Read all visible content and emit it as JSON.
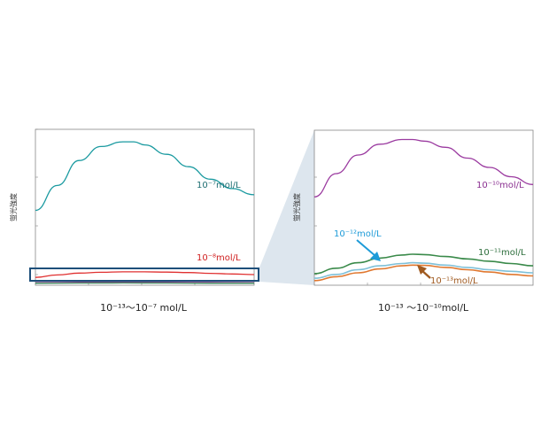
{
  "chart_data": [
    {
      "type": "line",
      "caption": "10⁻¹³～10⁻⁷ mol/L",
      "ylabel": "蛍光強度",
      "xlim": [
        0,
        100
      ],
      "ylim": [
        0,
        100
      ],
      "grid": false,
      "series": [
        {
          "name": "10⁻⁷mol/L",
          "color": "#1a9aa0",
          "x": [
            0,
            10,
            20,
            30,
            40,
            45,
            50,
            60,
            70,
            80,
            90,
            100
          ],
          "y": [
            48,
            64,
            80,
            89,
            92,
            92,
            90,
            84,
            76,
            68,
            62,
            58
          ]
        },
        {
          "name": "10⁻⁸mol/L",
          "color": "#e03030",
          "x": [
            0,
            10,
            20,
            30,
            40,
            50,
            60,
            70,
            80,
            90,
            100
          ],
          "y": [
            5.0,
            6.6,
            7.8,
            8.3,
            8.6,
            8.6,
            8.4,
            8.1,
            7.6,
            7.2,
            6.8
          ]
        },
        {
          "name": "",
          "color": "#a04aa0",
          "x": [
            0,
            20,
            40,
            60,
            80,
            100
          ],
          "y": [
            1.7,
            1.9,
            2.0,
            1.9,
            1.8,
            1.7
          ]
        },
        {
          "name": "",
          "color": "#2f7f50",
          "x": [
            0,
            20,
            40,
            60,
            80,
            100
          ],
          "y": [
            1.3,
            1.4,
            1.5,
            1.4,
            1.3,
            1.3
          ]
        }
      ]
    },
    {
      "type": "line",
      "caption": "10⁻¹³ ～10⁻¹⁰mol/L",
      "ylabel": "蛍光強度",
      "xlim": [
        0,
        100
      ],
      "ylim": [
        0,
        100
      ],
      "grid": false,
      "series": [
        {
          "name": "10⁻¹⁰mol/L",
          "color": "#9b3ba0",
          "x": [
            0,
            10,
            20,
            30,
            40,
            45,
            50,
            60,
            70,
            80,
            90,
            100
          ],
          "y": [
            57,
            72,
            84,
            91,
            94,
            94,
            93,
            89,
            82,
            76,
            70,
            65
          ]
        },
        {
          "name": "10⁻¹¹mol/L",
          "color": "#3a8a4a",
          "x": [
            0,
            10,
            20,
            30,
            40,
            45,
            50,
            60,
            70,
            80,
            90,
            100
          ],
          "y": [
            7.5,
            11,
            14.5,
            17.5,
            19.5,
            20,
            19.8,
            18.5,
            17,
            15.5,
            14,
            12.5
          ]
        },
        {
          "name": "10⁻¹²mol/L",
          "color": "#7fc0d8",
          "x": [
            0,
            10,
            20,
            30,
            40,
            45,
            50,
            60,
            70,
            80,
            90,
            100
          ],
          "y": [
            4.5,
            7,
            10,
            12.5,
            14,
            14.5,
            14.2,
            13,
            11.5,
            10,
            9,
            8
          ]
        },
        {
          "name": "10⁻¹³mol/L",
          "color": "#e07830",
          "x": [
            0,
            10,
            20,
            30,
            40,
            45,
            50,
            60,
            70,
            80,
            90,
            100
          ],
          "y": [
            3,
            5.5,
            8,
            10.5,
            12.5,
            13,
            12.8,
            11.5,
            10,
            8.5,
            7,
            6
          ]
        }
      ]
    }
  ],
  "colors": {
    "callout_blue": "#1e9bd8",
    "callout_brown": "#a05a20",
    "zoom_box": "#1e4f7a",
    "zoom_shade": "#dde6ee"
  }
}
